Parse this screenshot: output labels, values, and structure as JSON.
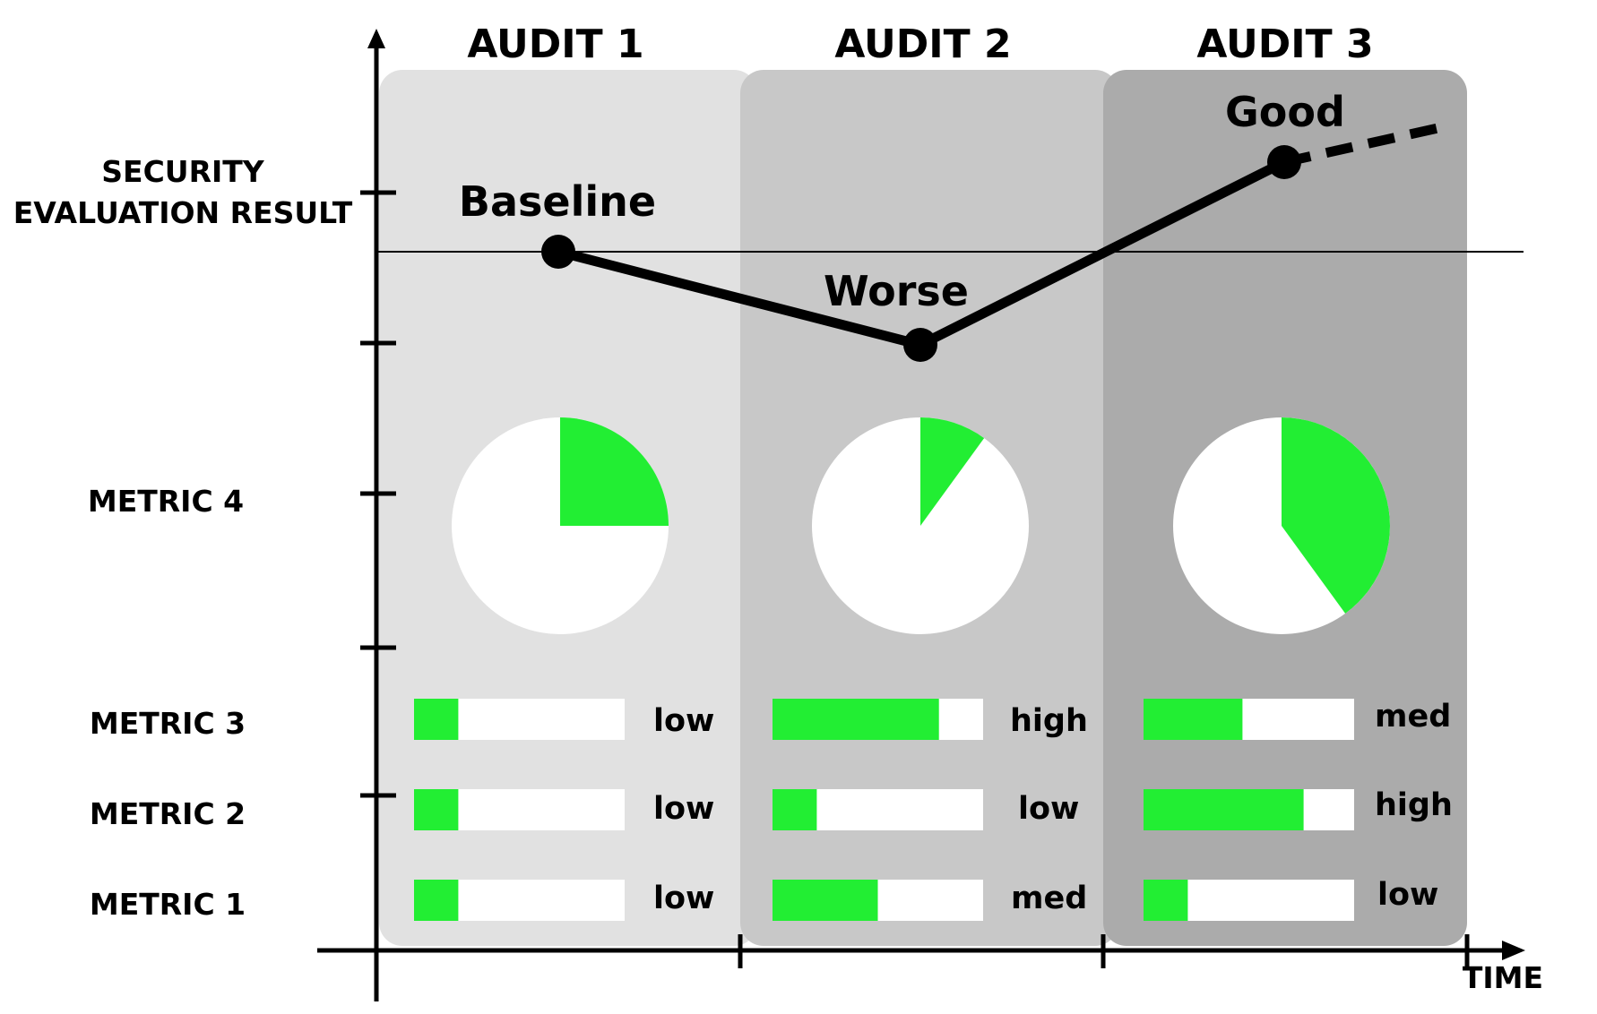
{
  "axis": {
    "time_label": "TIME"
  },
  "row_labels": {
    "security_line1": "SECURITY",
    "security_line2": "EVALUATION RESULT",
    "metric4": "METRIC 4",
    "metric3": "METRIC 3",
    "metric2": "METRIC 2",
    "metric1": "METRIC 1"
  },
  "colors": {
    "panel_1": "#e1e1e1",
    "panel_2": "#c8c8c8",
    "panel_3": "#ababab",
    "accent_green": "#22ee33",
    "track_white": "#ffffff",
    "line": "#000000"
  },
  "audits": [
    {
      "title": "AUDIT 1",
      "result_label": "Baseline",
      "metric4_fraction": 0.25,
      "metrics": [
        {
          "name": "METRIC 3",
          "level": "low",
          "fill": 0.21
        },
        {
          "name": "METRIC 2",
          "level": "low",
          "fill": 0.21
        },
        {
          "name": "METRIC 1",
          "level": "low",
          "fill": 0.21
        }
      ]
    },
    {
      "title": "AUDIT 2",
      "result_label": "Worse",
      "metric4_fraction": 0.1,
      "metrics": [
        {
          "name": "METRIC 3",
          "level": "high",
          "fill": 0.79
        },
        {
          "name": "METRIC 2",
          "level": "low",
          "fill": 0.21
        },
        {
          "name": "METRIC 1",
          "level": "med",
          "fill": 0.5
        }
      ]
    },
    {
      "title": "AUDIT 3",
      "result_label": "Good",
      "metric4_fraction": 0.4,
      "metrics": [
        {
          "name": "METRIC 3",
          "level": "med",
          "fill": 0.47
        },
        {
          "name": "METRIC 2",
          "level": "high",
          "fill": 0.76
        },
        {
          "name": "METRIC 1",
          "level": "low",
          "fill": 0.21
        }
      ]
    }
  ]
}
